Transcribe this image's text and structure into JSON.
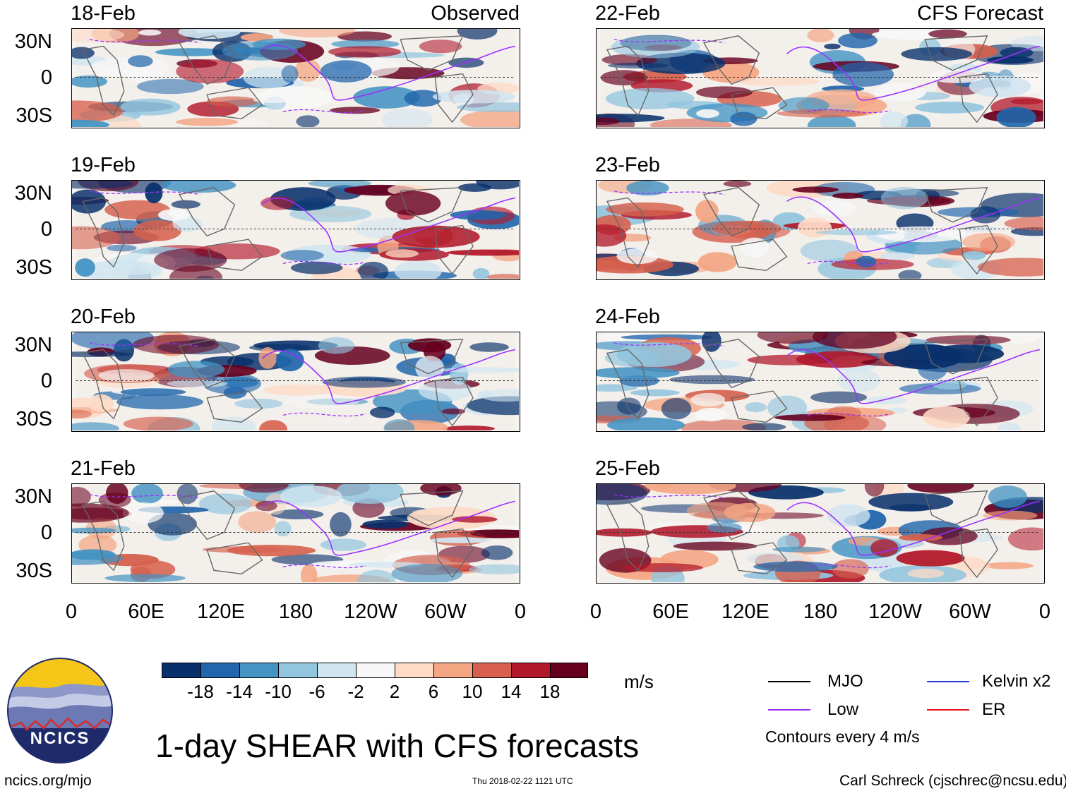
{
  "panels": [
    {
      "date": "18-Feb",
      "tag": "Observed"
    },
    {
      "date": "19-Feb",
      "tag": ""
    },
    {
      "date": "20-Feb",
      "tag": ""
    },
    {
      "date": "21-Feb",
      "tag": ""
    },
    {
      "date": "22-Feb",
      "tag": "CFS Forecast"
    },
    {
      "date": "23-Feb",
      "tag": ""
    },
    {
      "date": "24-Feb",
      "tag": ""
    },
    {
      "date": "25-Feb",
      "tag": ""
    }
  ],
  "lat_labels": [
    "30N",
    "0",
    "30S"
  ],
  "lon_labels": [
    "0",
    "60E",
    "120E",
    "180",
    "120W",
    "60W",
    "0"
  ],
  "colorbar": {
    "ticks": [
      "-18",
      "-14",
      "-10",
      "-6",
      "-2",
      "2",
      "6",
      "10",
      "14",
      "18"
    ],
    "colors": [
      "#08306b",
      "#2166ac",
      "#4393c3",
      "#92c5de",
      "#d1e5f0",
      "#f7f7f7",
      "#fddbc7",
      "#f4a582",
      "#d6604d",
      "#b2182b",
      "#67001f"
    ],
    "units": "m/s"
  },
  "logo": {
    "text": "NCICS"
  },
  "title": "1-day SHEAR with CFS forecasts",
  "legend": {
    "items": [
      {
        "label": "MJO",
        "color": "#000000"
      },
      {
        "label": "Kelvin x2",
        "color": "#1f3fd0"
      },
      {
        "label": "Low",
        "color": "#9b30ff"
      },
      {
        "label": "ER",
        "color": "#e8141c"
      }
    ],
    "note": "Contours every 4 m/s"
  },
  "footer": {
    "website": "ncics.org/mjo",
    "timestamp": "Thu 2018-02-22 1121 UTC",
    "author": "Carl Schreck (cjschrec@ncsu.edu)"
  }
}
